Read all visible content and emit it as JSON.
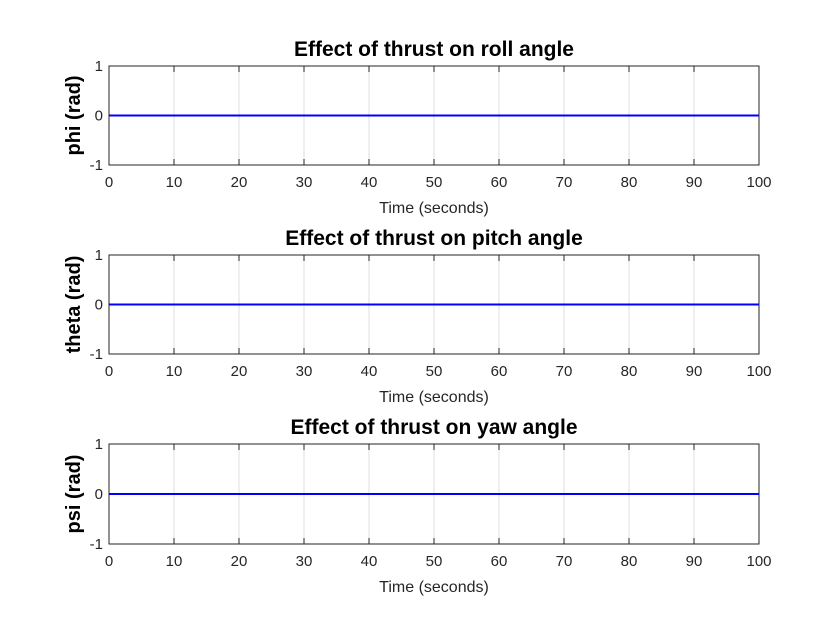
{
  "chart_data": [
    {
      "type": "line",
      "title": "Effect of thrust on roll angle",
      "xlabel": "Time (seconds)",
      "ylabel": "phi (rad)",
      "xlim": [
        0,
        100
      ],
      "ylim": [
        -1,
        1
      ],
      "xticks": [
        0,
        10,
        20,
        30,
        40,
        50,
        60,
        70,
        80,
        90,
        100
      ],
      "yticks": [
        -1,
        0,
        1
      ],
      "grid": "x-major",
      "series": [
        {
          "x": [
            0,
            100
          ],
          "y": [
            0,
            0
          ],
          "color": "#0000ff"
        }
      ]
    },
    {
      "type": "line",
      "title": "Effect of thrust on pitch angle",
      "xlabel": "Time (seconds)",
      "ylabel": "theta (rad)",
      "xlim": [
        0,
        100
      ],
      "ylim": [
        -1,
        1
      ],
      "xticks": [
        0,
        10,
        20,
        30,
        40,
        50,
        60,
        70,
        80,
        90,
        100
      ],
      "yticks": [
        -1,
        0,
        1
      ],
      "grid": "x-major",
      "series": [
        {
          "x": [
            0,
            100
          ],
          "y": [
            0,
            0
          ],
          "color": "#0000ff"
        }
      ]
    },
    {
      "type": "line",
      "title": "Effect of thrust on yaw angle",
      "xlabel": "Time (seconds)",
      "ylabel": "psi (rad)",
      "xlim": [
        0,
        100
      ],
      "ylim": [
        -1,
        1
      ],
      "xticks": [
        0,
        10,
        20,
        30,
        40,
        50,
        60,
        70,
        80,
        90,
        100
      ],
      "yticks": [
        -1,
        0,
        1
      ],
      "grid": "x-major",
      "series": [
        {
          "x": [
            0,
            100
          ],
          "y": [
            0,
            0
          ],
          "color": "#0000ff"
        }
      ]
    }
  ]
}
